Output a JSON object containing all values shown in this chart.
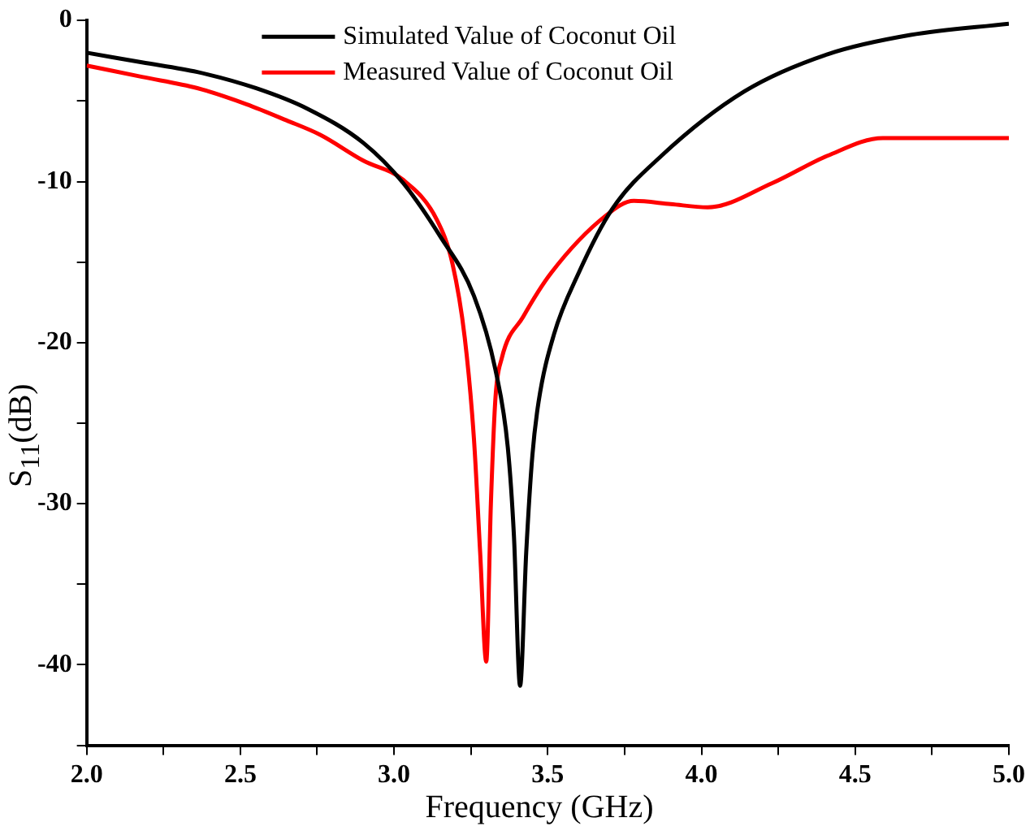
{
  "chart_data": {
    "type": "line",
    "xlabel": "Frequency (GHz)",
    "ylabel": "S$_{11}$(dB)",
    "xlim": [
      2.0,
      5.0
    ],
    "ylim": [
      -45,
      0
    ],
    "xticks": [
      {
        "value": 2.0,
        "label": "2.0"
      },
      {
        "value": 2.25,
        "label": null
      },
      {
        "value": 2.5,
        "label": "2.5"
      },
      {
        "value": 2.75,
        "label": null
      },
      {
        "value": 3.0,
        "label": "3.0"
      },
      {
        "value": 3.25,
        "label": null
      },
      {
        "value": 3.5,
        "label": "3.5"
      },
      {
        "value": 3.75,
        "label": null
      },
      {
        "value": 4.0,
        "label": "4.0"
      },
      {
        "value": 4.25,
        "label": null
      },
      {
        "value": 4.5,
        "label": "4.5"
      },
      {
        "value": 4.75,
        "label": null
      },
      {
        "value": 5.0,
        "label": "5.0"
      }
    ],
    "yticks": [
      0,
      {
        "value": -5,
        "label": null
      },
      -10,
      {
        "value": -15,
        "label": null
      },
      -20,
      {
        "value": -25,
        "label": null
      },
      -30,
      {
        "value": -35,
        "label": null
      },
      -40,
      {
        "value": -45,
        "label": null
      }
    ],
    "grid": false,
    "legend": "top",
    "marker": "none",
    "line_style": "solid",
    "series": [
      {
        "name": "Simulated Value of Coconut Oil",
        "color": "#000000",
        "x": [
          2.0,
          2.18,
          2.36,
          2.55,
          2.72,
          2.9,
          3.03,
          3.15,
          3.26,
          3.33,
          3.37,
          3.39,
          3.41,
          3.43,
          3.45,
          3.47,
          3.52,
          3.6,
          3.71,
          3.87,
          4.14,
          4.41,
          4.68,
          5.0
        ],
        "values": [
          -2.0,
          -2.6,
          -3.2,
          -4.2,
          -5.5,
          -7.6,
          -10.1,
          -13.4,
          -17.1,
          -21.7,
          -26.5,
          -32.0,
          -41.3,
          -33.0,
          -27.0,
          -23.7,
          -19.5,
          -15.7,
          -11.7,
          -8.4,
          -4.4,
          -2.1,
          -0.9,
          -0.2
        ]
      },
      {
        "name": "Measured Value of Coconut Oil",
        "color": "#ff0000",
        "x": [
          2.0,
          2.18,
          2.36,
          2.52,
          2.65,
          2.76,
          2.9,
          3.03,
          3.14,
          3.19,
          3.23,
          3.26,
          3.28,
          3.3,
          3.315,
          3.33,
          3.35,
          3.42,
          3.51,
          3.69,
          3.78,
          3.9,
          4.02,
          4.23,
          4.41,
          4.59,
          4.8,
          5.0
        ],
        "values": [
          -2.8,
          -3.5,
          -4.2,
          -5.2,
          -6.2,
          -7.1,
          -8.7,
          -9.9,
          -12.4,
          -15.1,
          -19.7,
          -26.0,
          -33.0,
          -39.8,
          -30.0,
          -23.4,
          -21.0,
          -18.4,
          -15.7,
          -12.1,
          -11.2,
          -11.4,
          -11.6,
          -10.1,
          -8.4,
          -7.3,
          -7.3,
          -7.3
        ]
      }
    ]
  }
}
